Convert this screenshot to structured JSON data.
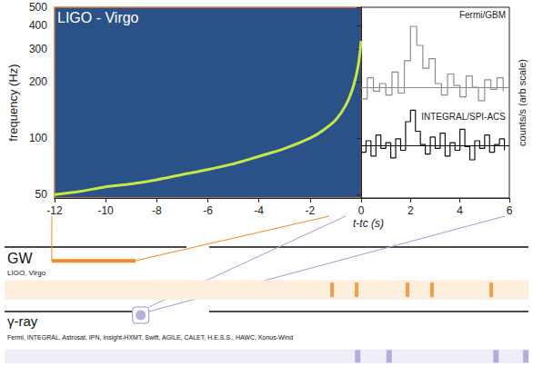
{
  "chart_data": [
    {
      "type": "line",
      "title": "LIGO - Virgo",
      "xlabel": "t-tc (s)",
      "ylabel": "frequency (Hz)",
      "x": [
        -12,
        -11,
        -10,
        -9,
        -8,
        -7,
        -6,
        -5,
        -4,
        -3,
        -2,
        -1.5,
        -1,
        -0.6,
        -0.3,
        -0.1,
        0
      ],
      "values": [
        50,
        52,
        55,
        57,
        60,
        64,
        68,
        73,
        80,
        88,
        100,
        110,
        125,
        150,
        190,
        250,
        330
      ],
      "color": "#c8e645",
      "xlim": [
        -12,
        0
      ],
      "xticks": [
        -12,
        -10,
        -8,
        -6,
        -4,
        -2,
        0
      ],
      "ylim": [
        48,
        500
      ],
      "yticks": [
        50,
        100,
        200,
        300,
        400,
        500
      ],
      "log": "y"
    },
    {
      "type": "line",
      "ylabel": "counts/s (arb scale)",
      "xlim": [
        0,
        6
      ],
      "xticks": [
        2,
        4,
        6
      ],
      "ylim": [
        0,
        10
      ],
      "tick_labels": "x",
      "series": [
        {
          "name": "Fermi/GBM",
          "color": "#8c8c8c",
          "line_style": "step",
          "background": 5.8,
          "x": [
            0,
            0.25,
            0.5,
            0.75,
            1,
            1.25,
            1.5,
            1.75,
            2,
            2.25,
            2.5,
            2.75,
            3,
            3.25,
            3.5,
            3.75,
            4,
            4.25,
            4.5,
            4.75,
            5,
            5.25,
            5.5,
            5.75
          ],
          "values": [
            5.2,
            6.3,
            5.6,
            6.0,
            5.4,
            6.6,
            5.5,
            7.2,
            9.0,
            8.0,
            6.8,
            7.3,
            6.0,
            5.4,
            6.5,
            5.9,
            5.3,
            6.4,
            5.8,
            5.1,
            6.2,
            5.7,
            6.3,
            5.6
          ]
        },
        {
          "name": "INTEGRAL/SPI-ACS",
          "color": "#111111",
          "line_style": "step",
          "background": 2.76,
          "x": [
            0,
            0.2,
            0.4,
            0.6,
            0.8,
            1,
            1.2,
            1.4,
            1.6,
            1.8,
            2,
            2.2,
            2.4,
            2.6,
            2.8,
            3,
            3.2,
            3.4,
            3.6,
            3.8,
            4,
            4.2,
            4.4,
            4.6,
            4.8,
            5,
            5.2,
            5.4,
            5.6,
            5.8
          ],
          "values": [
            2.4,
            3.0,
            2.2,
            3.3,
            2.6,
            2.9,
            2.1,
            3.1,
            2.5,
            4.0,
            4.6,
            3.5,
            2.8,
            2.3,
            3.2,
            2.6,
            3.4,
            2.2,
            2.9,
            2.5,
            3.6,
            2.7,
            2.0,
            3.0,
            2.6,
            3.3,
            2.4,
            2.8,
            3.1,
            2.5
          ]
        }
      ]
    },
    {
      "type": "timeline",
      "xlim": [
        0,
        100
      ],
      "tick_labels": false,
      "rows": [
        {
          "label": "GW",
          "instruments": "LIGO, Virgo",
          "color": "#f08a24",
          "span": [
            9,
            25
          ],
          "marks": [
            62.5,
            67.2,
            76.9,
            81.6,
            92.9
          ]
        },
        {
          "label": "γ-ray",
          "instruments": "Fermi, INTEGRAL, Astrosat, IPN, Insight-HXMT, Swift, AGILE, CALET, H.E.S.S., HAWC, Konus-Wind",
          "color": "#a49bd6",
          "point": 26,
          "marks": [
            67.4,
            73.4,
            93.8,
            99.5
          ]
        }
      ]
    }
  ]
}
